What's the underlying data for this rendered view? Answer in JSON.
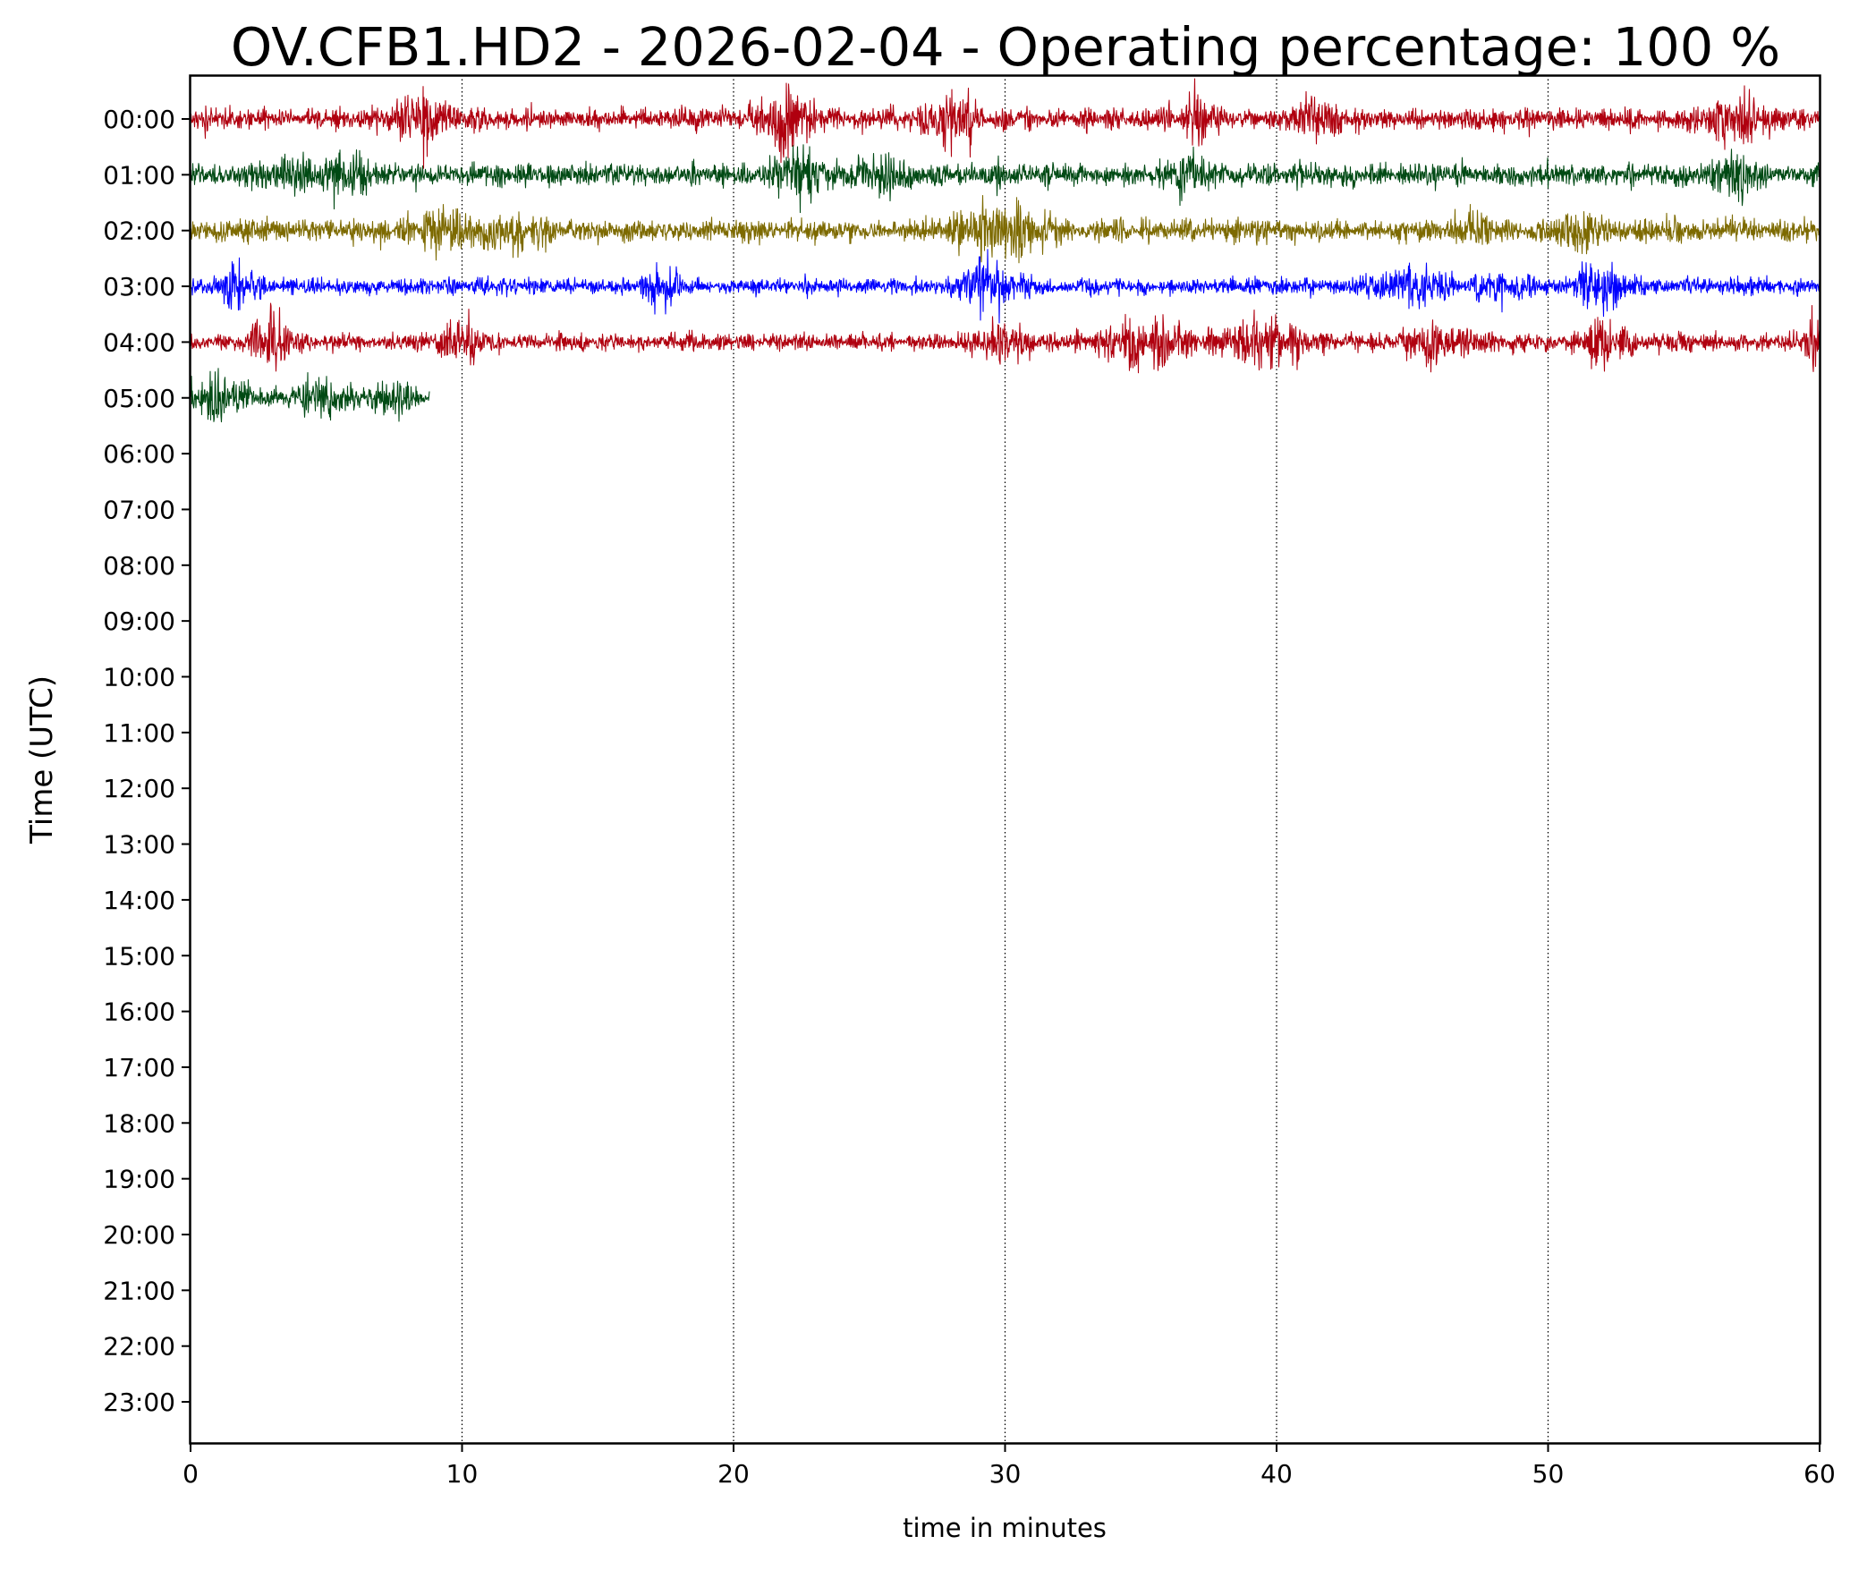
{
  "chart_data": {
    "type": "line",
    "title": "OV.CFB1.HD2 - 2026-02-04 - Operating percentage: 100 %",
    "xlabel": "time in minutes",
    "ylabel": "Time (UTC)",
    "xlim": [
      0,
      60
    ],
    "x_ticks": [
      0,
      10,
      20,
      30,
      40,
      50,
      60
    ],
    "x_tick_labels": [
      "0",
      "10",
      "20",
      "30",
      "40",
      "50",
      "60"
    ],
    "y_tick_labels": [
      "00:00",
      "01:00",
      "02:00",
      "03:00",
      "04:00",
      "05:00",
      "06:00",
      "07:00",
      "08:00",
      "09:00",
      "10:00",
      "11:00",
      "12:00",
      "13:00",
      "14:00",
      "15:00",
      "16:00",
      "17:00",
      "18:00",
      "19:00",
      "20:00",
      "21:00",
      "22:00",
      "23:00"
    ],
    "grid": "vertical dotted at each x tick",
    "series": [
      {
        "hour": "00:00",
        "color": "#b0000f",
        "start_min": 0,
        "end_min": 60,
        "amplitude": 0.38,
        "bursts": [
          [
            8.5,
            1.0,
            0.9
          ],
          [
            22.0,
            1.0,
            0.9
          ],
          [
            28.0,
            0.9,
            0.7
          ],
          [
            37.0,
            0.9,
            0.6
          ],
          [
            41.5,
            0.8,
            0.5
          ],
          [
            57.0,
            1.0,
            0.6
          ]
        ]
      },
      {
        "hour": "01:00",
        "color": "#004a14",
        "start_min": 0,
        "end_min": 60,
        "amplitude": 0.38,
        "bursts": [
          [
            3.5,
            1.0,
            0.5
          ],
          [
            5.7,
            0.8,
            0.6
          ],
          [
            22.5,
            1.0,
            0.7
          ],
          [
            25.5,
            0.8,
            0.5
          ],
          [
            36.5,
            0.8,
            0.5
          ],
          [
            57.0,
            0.9,
            0.7
          ]
        ]
      },
      {
        "hour": "02:00",
        "color": "#7d6a00",
        "start_min": 0,
        "end_min": 60,
        "amplitude": 0.4,
        "bursts": [
          [
            9.5,
            1.2,
            0.6
          ],
          [
            12.0,
            1.2,
            0.4
          ],
          [
            29.5,
            1.2,
            0.6
          ],
          [
            31.0,
            1.0,
            0.5
          ],
          [
            47.0,
            1.0,
            0.3
          ],
          [
            51.0,
            1.0,
            0.4
          ]
        ]
      },
      {
        "hour": "03:00",
        "color": "#0000ff",
        "start_min": 0,
        "end_min": 60,
        "amplitude": 0.28,
        "bursts": [
          [
            1.8,
            0.6,
            0.7
          ],
          [
            17.5,
            0.8,
            0.5
          ],
          [
            29.5,
            1.2,
            0.7
          ],
          [
            45.0,
            1.5,
            0.5
          ],
          [
            48.5,
            1.0,
            0.4
          ],
          [
            52.0,
            0.8,
            0.9
          ]
        ]
      },
      {
        "hour": "04:00",
        "color": "#b0000f",
        "start_min": 0,
        "end_min": 60,
        "amplitude": 0.3,
        "bursts": [
          [
            3.0,
            0.8,
            0.6
          ],
          [
            10.0,
            0.8,
            0.6
          ],
          [
            30.0,
            1.0,
            0.5
          ],
          [
            35.0,
            1.5,
            0.8
          ],
          [
            39.5,
            1.5,
            0.6
          ],
          [
            46.0,
            1.5,
            0.5
          ],
          [
            52.0,
            0.8,
            0.8
          ],
          [
            59.8,
            0.5,
            0.9
          ]
        ]
      },
      {
        "hour": "05:00",
        "color": "#004a14",
        "start_min": 0,
        "end_min": 8.8,
        "amplitude": 0.32,
        "bursts": [
          [
            1.0,
            0.8,
            0.8
          ],
          [
            4.8,
            0.9,
            0.6
          ],
          [
            7.5,
            0.6,
            0.5
          ]
        ]
      }
    ]
  }
}
